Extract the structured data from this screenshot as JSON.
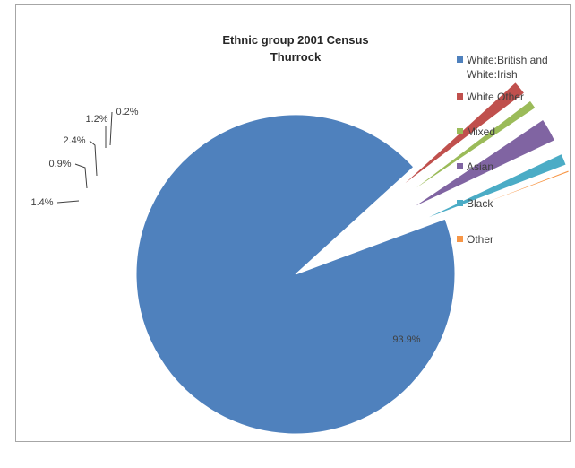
{
  "chart_data": {
    "type": "pie",
    "title": [
      "Ethnic group 2001 Census",
      "Thurrock"
    ],
    "categories": [
      "White:British and White:Irish",
      "White Other",
      "Mixed",
      "Asian",
      "Black",
      "Other"
    ],
    "values": [
      93.9,
      1.4,
      0.9,
      2.4,
      1.2,
      0.2
    ],
    "labels": [
      "93.9%",
      "1.4%",
      "0.9%",
      "2.4%",
      "1.2%",
      "0.2%"
    ],
    "colors": [
      "#4f81bd",
      "#c0504d",
      "#9bbb59",
      "#8064a2",
      "#4bacc6",
      "#f79646"
    ],
    "legend": {
      "position": "right",
      "entries": [
        [
          "White:British and",
          "White:Irish"
        ],
        [
          "White Other"
        ],
        [
          "Mixed"
        ],
        [
          "Asian"
        ],
        [
          "Black"
        ],
        [
          "Other"
        ]
      ]
    },
    "exploded_slices": [
      "White Other",
      "Mixed",
      "Asian",
      "Black",
      "Other"
    ]
  }
}
